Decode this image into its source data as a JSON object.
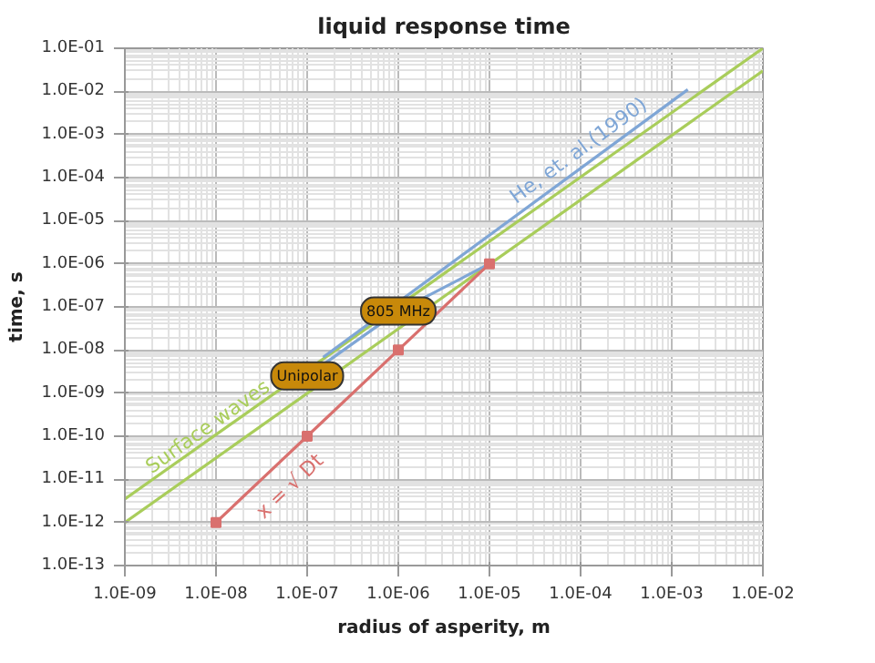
{
  "chart_data": {
    "type": "line",
    "title": "liquid response time",
    "xlabel": "radius of asperity, m",
    "ylabel": "time, s",
    "log": "xy",
    "grid": true,
    "line_style": "solid",
    "xlim": [
      1e-09,
      0.01
    ],
    "ylim": [
      1e-13,
      0.1
    ],
    "xticks": [
      {
        "value": 1e-09,
        "label": "1.0E-09"
      },
      {
        "value": 1e-08,
        "label": "1.0E-08"
      },
      {
        "value": 1e-07,
        "label": "1.0E-07"
      },
      {
        "value": 1e-06,
        "label": "1.0E-06"
      },
      {
        "value": 1e-05,
        "label": "1.0E-05"
      },
      {
        "value": 0.0001,
        "label": "1.0E-04"
      },
      {
        "value": 0.001,
        "label": "1.0E-03"
      },
      {
        "value": 0.01,
        "label": "1.0E-02"
      }
    ],
    "yticks": [
      {
        "value": 1e-13,
        "label": "1.0E-13"
      },
      {
        "value": 1e-12,
        "label": "1.0E-12"
      },
      {
        "value": 1e-11,
        "label": "1.0E-11"
      },
      {
        "value": 1e-10,
        "label": "1.0E-10"
      },
      {
        "value": 1e-09,
        "label": "1.0E-09"
      },
      {
        "value": 1e-08,
        "label": "1.0E-08"
      },
      {
        "value": 1e-07,
        "label": "1.0E-07"
      },
      {
        "value": 1e-06,
        "label": "1.0E-06"
      },
      {
        "value": 1e-05,
        "label": "1.0E-05"
      },
      {
        "value": 0.0001,
        "label": "1.0E-04"
      },
      {
        "value": 0.001,
        "label": "1.0E-03"
      },
      {
        "value": 0.01,
        "label": "1.0E-02"
      },
      {
        "value": 0.1,
        "label": "1.0E-01"
      }
    ],
    "series": [
      {
        "name": "Surface waves",
        "color": "#a9cd5b",
        "x": [
          1e-09,
          0.01
        ],
        "values": [
          3.5e-12,
          0.1
        ]
      },
      {
        "color": "#a9cd5b",
        "x": [
          1e-09,
          0.01
        ],
        "values": [
          1e-12,
          0.03
        ]
      },
      {
        "name": "He, et. al.(1990)",
        "color": "#7fa6d6",
        "x": [
          1.5e-07,
          0.0015
        ],
        "values": [
          6.8e-09,
          0.011
        ]
      },
      {
        "color": "#7fa6d6",
        "x": [
          1e-07,
          1e-06,
          1e-05
        ],
        "values": [
          2.5e-09,
          8e-08,
          1e-06
        ]
      },
      {
        "name": "x = √ Dt",
        "color": "#d9706e",
        "marker": "square",
        "x": [
          1e-08,
          1e-07,
          1e-06,
          1e-05
        ],
        "values": [
          1e-12,
          1e-10,
          1e-08,
          1e-06
        ]
      }
    ],
    "annotations": [
      {
        "text": "Unipolar",
        "x": 1e-07,
        "y": 2.5e-09
      },
      {
        "text": "805 MHz",
        "x": 1e-06,
        "y": 8e-08
      }
    ]
  }
}
